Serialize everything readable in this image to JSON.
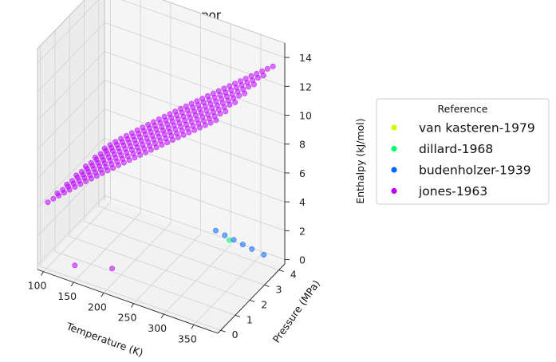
{
  "chart_data": {
    "type": "scatter",
    "projection": "3d",
    "title": "Enthalpy - vapor",
    "xlabel": "Temperature (K)",
    "ylabel": "Pressure (MPa)",
    "zlabel": "Enthalpy (kJ/mol)",
    "xlim": [
      90,
      390
    ],
    "ylim": [
      -0.2,
      4.4
    ],
    "zlim": [
      -0.3,
      15
    ],
    "x_ticks": [
      100,
      150,
      200,
      250,
      300,
      350
    ],
    "y_ticks": [
      0,
      1,
      2,
      3,
      4
    ],
    "z_ticks": [
      0,
      2,
      4,
      6,
      8,
      10,
      12,
      14
    ],
    "grid": true,
    "legend": {
      "title": "Reference",
      "placement": "right",
      "entries": [
        "van kasteren-1979",
        "dillard-1968",
        "budenholzer-1939",
        "jones-1963"
      ]
    },
    "series": [
      {
        "name": "van kasteren-1979",
        "color": "#ccff00",
        "points": []
      },
      {
        "name": "dillard-1968",
        "color": "#00ff66",
        "points": [
          [
            305,
            4.1,
            0.4
          ]
        ]
      },
      {
        "name": "budenholzer-1939",
        "color": "#0066ff",
        "points": [
          [
            280,
            4.2,
            0.6
          ],
          [
            295,
            4.2,
            0.5
          ],
          [
            310,
            4.2,
            0.4
          ],
          [
            325,
            4.2,
            0.3
          ],
          [
            340,
            4.2,
            0.2
          ],
          [
            360,
            4.2,
            0.1
          ]
        ]
      },
      {
        "name": "jones-1963",
        "color": "#bb00ff",
        "points": [
          [
            140,
            0.3,
            0.2
          ],
          [
            190,
            0.8,
            0.2
          ]
        ],
        "surface": {
          "x_range": [
            100,
            380
          ],
          "y_range": [
            0.1,
            4.0
          ],
          "x_steps": 32,
          "y_steps": 7,
          "z_min": 4.2,
          "z_max": 14.0
        }
      }
    ]
  }
}
